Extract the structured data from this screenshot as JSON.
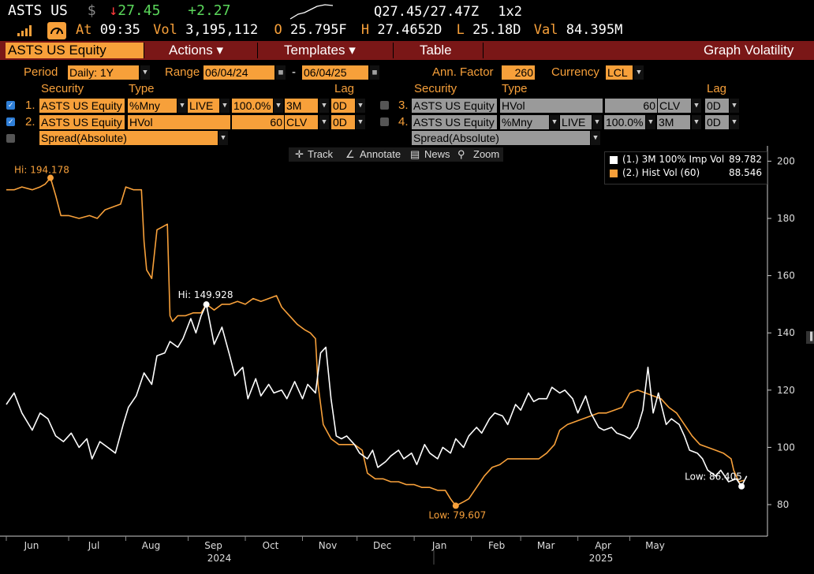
{
  "header": {
    "ticker": "ASTS US",
    "currency_symbol": "$",
    "arrow": "↓",
    "last": "27.45",
    "change": "+2.27",
    "quote": "Q27.45/27.47Z",
    "size": "1x2",
    "at_label": "At",
    "time": "09:35",
    "vol_label": "Vol",
    "volume": "3,195,112",
    "open_label": "O",
    "open": "25.795F",
    "high_label": "H",
    "high": "27.4652D",
    "low_label": "L",
    "low": "25.18D",
    "val_label": "Val",
    "value": "84.395M"
  },
  "toolbar": {
    "security": "ASTS US Equity",
    "actions": "Actions ▾",
    "templates": "Templates ▾",
    "table": "Table",
    "title": "Graph Volatility"
  },
  "settings": {
    "period_label": "Period",
    "period": "Daily: 1Y",
    "range_label": "Range",
    "range_start": "06/04/24",
    "range_sep": "-",
    "range_end": "06/04/25",
    "ann_factor_label": "Ann. Factor",
    "ann_factor": "260",
    "currency_label": "Currency",
    "currency": "LCL",
    "col_security": "Security",
    "col_type": "Type",
    "col_lag": "Lag",
    "rows_left": [
      {
        "num": "1.",
        "security": "ASTS US Equity",
        "type": "%Mny",
        "src": "LIVE",
        "pct": "100.0%",
        "tenor": "3M",
        "lag": "0D"
      },
      {
        "num": "2.",
        "security": "ASTS US Equity",
        "type": "HVol",
        "window": "60",
        "src": "CLV",
        "lag": "0D"
      }
    ],
    "spread_left": "Spread(Absolute)",
    "rows_right": [
      {
        "num": "3.",
        "security": "ASTS US Equity",
        "type": "HVol",
        "window": "60",
        "src": "CLV",
        "lag": "0D"
      },
      {
        "num": "4.",
        "security": "ASTS US Equity",
        "type": "%Mny",
        "src": "LIVE",
        "pct": "100.0%",
        "tenor": "3M",
        "lag": "0D"
      }
    ],
    "spread_right": "Spread(Absolute)"
  },
  "chart_tools": {
    "track": "Track",
    "annotate": "Annotate",
    "news": "News",
    "zoom": "Zoom"
  },
  "colors": {
    "series1": "#ffffff",
    "series2": "#f7a03a",
    "bar": "#7a1717",
    "accent": "#f7a03a"
  },
  "chart_data": {
    "type": "line",
    "title": "",
    "xlabel": "",
    "ylabel": "",
    "ylim": [
      70,
      205
    ],
    "yticks": [
      80,
      100,
      120,
      140,
      160,
      180,
      200
    ],
    "x_months": [
      "Jun",
      "Jul",
      "Aug",
      "Sep",
      "Oct",
      "Nov",
      "Dec",
      "Jan",
      "Feb",
      "Mar",
      "Apr",
      "May"
    ],
    "x_years": [
      "2024",
      "2025"
    ],
    "grid": false,
    "legend_position": "top-right",
    "series": [
      {
        "name": "(1.) 3M 100% Imp Vol",
        "last": "89.782",
        "color": "#ffffff",
        "values": [
          [
            0,
            115
          ],
          [
            3,
            119
          ],
          [
            6,
            112
          ],
          [
            10,
            106
          ],
          [
            13,
            112
          ],
          [
            16,
            110
          ],
          [
            19,
            104
          ],
          [
            22,
            102
          ],
          [
            25,
            105
          ],
          [
            28,
            100
          ],
          [
            31,
            103
          ],
          [
            33,
            96
          ],
          [
            36,
            102
          ],
          [
            39,
            100
          ],
          [
            42,
            98
          ],
          [
            45,
            108
          ],
          [
            47,
            114
          ],
          [
            50,
            118
          ],
          [
            53,
            126
          ],
          [
            56,
            122
          ],
          [
            58,
            132
          ],
          [
            61,
            133
          ],
          [
            63,
            137
          ],
          [
            66,
            135
          ],
          [
            68,
            138
          ],
          [
            71,
            145
          ],
          [
            73,
            140
          ],
          [
            75,
            146
          ],
          [
            77,
            150
          ],
          [
            80,
            136
          ],
          [
            83,
            142
          ],
          [
            86,
            132
          ],
          [
            88,
            125
          ],
          [
            91,
            128
          ],
          [
            93,
            117
          ],
          [
            96,
            124
          ],
          [
            98,
            118
          ],
          [
            101,
            122
          ],
          [
            103,
            119
          ],
          [
            106,
            120
          ],
          [
            108,
            117
          ],
          [
            111,
            123
          ],
          [
            114,
            117
          ],
          [
            116,
            122
          ],
          [
            119,
            119
          ],
          [
            121,
            133
          ],
          [
            123,
            135
          ],
          [
            125,
            117
          ],
          [
            127,
            104
          ],
          [
            129,
            103
          ],
          [
            131,
            104
          ],
          [
            134,
            101
          ],
          [
            136,
            98
          ],
          [
            139,
            96
          ],
          [
            141,
            99
          ],
          [
            143,
            93
          ],
          [
            146,
            95
          ],
          [
            148,
            97
          ],
          [
            151,
            99
          ],
          [
            153,
            96
          ],
          [
            156,
            98
          ],
          [
            158,
            94
          ],
          [
            161,
            101
          ],
          [
            163,
            98
          ],
          [
            166,
            96
          ],
          [
            168,
            100
          ],
          [
            171,
            98
          ],
          [
            173,
            103
          ],
          [
            176,
            100
          ],
          [
            178,
            104
          ],
          [
            181,
            107
          ],
          [
            183,
            105
          ],
          [
            186,
            110
          ],
          [
            188,
            112
          ],
          [
            191,
            111
          ],
          [
            193,
            108
          ],
          [
            196,
            115
          ],
          [
            198,
            113
          ],
          [
            201,
            119
          ],
          [
            203,
            116
          ],
          [
            205,
            117
          ],
          [
            208,
            117
          ],
          [
            210,
            121
          ],
          [
            213,
            119
          ],
          [
            215,
            120
          ],
          [
            218,
            117
          ],
          [
            220,
            112
          ],
          [
            223,
            118
          ],
          [
            225,
            112
          ],
          [
            228,
            107
          ],
          [
            230,
            106
          ],
          [
            233,
            107
          ],
          [
            235,
            105
          ],
          [
            238,
            104
          ],
          [
            240,
            103
          ],
          [
            243,
            107
          ],
          [
            245,
            113
          ],
          [
            247,
            128
          ],
          [
            249,
            112
          ],
          [
            251,
            119
          ],
          [
            254,
            108
          ],
          [
            256,
            110
          ],
          [
            259,
            108
          ],
          [
            261,
            104
          ],
          [
            263,
            99
          ],
          [
            266,
            98
          ],
          [
            268,
            96
          ],
          [
            270,
            92
          ],
          [
            273,
            90
          ],
          [
            275,
            92
          ],
          [
            278,
            88
          ],
          [
            281,
            89
          ],
          [
            283,
            86.4
          ],
          [
            285,
            90
          ]
        ]
      },
      {
        "name": "(2.) Hist Vol (60)",
        "last": "88.546",
        "color": "#f7a03a",
        "values": [
          [
            0,
            190
          ],
          [
            3,
            190
          ],
          [
            6,
            191
          ],
          [
            10,
            190
          ],
          [
            13,
            191
          ],
          [
            15,
            192
          ],
          [
            17,
            194.2
          ],
          [
            19,
            188
          ],
          [
            21,
            181
          ],
          [
            24,
            181
          ],
          [
            28,
            180
          ],
          [
            32,
            181
          ],
          [
            35,
            180
          ],
          [
            38,
            183
          ],
          [
            41,
            184
          ],
          [
            44,
            185
          ],
          [
            46,
            191
          ],
          [
            49,
            190
          ],
          [
            52,
            190
          ],
          [
            53,
            172
          ],
          [
            54,
            162
          ],
          [
            56,
            159
          ],
          [
            58,
            176
          ],
          [
            60,
            177
          ],
          [
            62,
            178
          ],
          [
            63,
            146
          ],
          [
            64,
            144
          ],
          [
            66,
            146
          ],
          [
            69,
            146
          ],
          [
            72,
            147
          ],
          [
            75,
            147
          ],
          [
            77,
            150
          ],
          [
            80,
            148
          ],
          [
            83,
            150
          ],
          [
            86,
            150
          ],
          [
            89,
            151
          ],
          [
            92,
            150
          ],
          [
            95,
            152
          ],
          [
            98,
            151
          ],
          [
            101,
            152
          ],
          [
            104,
            153
          ],
          [
            106,
            149
          ],
          [
            109,
            146
          ],
          [
            112,
            143
          ],
          [
            115,
            141
          ],
          [
            117,
            140
          ],
          [
            119,
            138
          ],
          [
            120,
            122
          ],
          [
            122,
            108
          ],
          [
            125,
            103
          ],
          [
            128,
            101
          ],
          [
            131,
            101
          ],
          [
            134,
            101
          ],
          [
            137,
            99
          ],
          [
            139,
            91
          ],
          [
            142,
            89
          ],
          [
            145,
            89
          ],
          [
            148,
            88
          ],
          [
            151,
            88
          ],
          [
            154,
            87
          ],
          [
            157,
            87
          ],
          [
            160,
            86
          ],
          [
            163,
            86
          ],
          [
            166,
            85
          ],
          [
            169,
            85
          ],
          [
            171,
            82
          ],
          [
            173,
            79.6
          ],
          [
            176,
            81
          ],
          [
            178,
            82
          ],
          [
            181,
            86
          ],
          [
            184,
            90
          ],
          [
            187,
            93
          ],
          [
            190,
            94
          ],
          [
            193,
            96
          ],
          [
            196,
            96
          ],
          [
            199,
            96
          ],
          [
            202,
            96
          ],
          [
            205,
            96
          ],
          [
            208,
            98
          ],
          [
            211,
            101
          ],
          [
            213,
            106
          ],
          [
            216,
            108
          ],
          [
            219,
            109
          ],
          [
            222,
            110
          ],
          [
            225,
            111
          ],
          [
            228,
            112
          ],
          [
            231,
            112
          ],
          [
            234,
            113
          ],
          [
            237,
            114
          ],
          [
            240,
            119
          ],
          [
            243,
            120
          ],
          [
            246,
            119
          ],
          [
            249,
            118
          ],
          [
            252,
            117
          ],
          [
            255,
            114
          ],
          [
            258,
            112
          ],
          [
            261,
            108
          ],
          [
            264,
            104
          ],
          [
            267,
            101
          ],
          [
            270,
            100
          ],
          [
            273,
            99
          ],
          [
            276,
            98
          ],
          [
            279,
            96
          ],
          [
            280,
            92
          ],
          [
            282,
            88
          ],
          [
            284,
            88.5
          ]
        ]
      }
    ],
    "annotations": [
      {
        "label": "Hi: 194.178",
        "series": 2,
        "x": 17,
        "y": 194.178
      },
      {
        "label": "Hi: 149.928",
        "series": 1,
        "x": 77,
        "y": 149.928
      },
      {
        "label": "Low: 79.607",
        "series": 2,
        "x": 173,
        "y": 79.607
      },
      {
        "label": "Low: 86.405",
        "series": 1,
        "x": 283,
        "y": 86.405
      }
    ]
  }
}
